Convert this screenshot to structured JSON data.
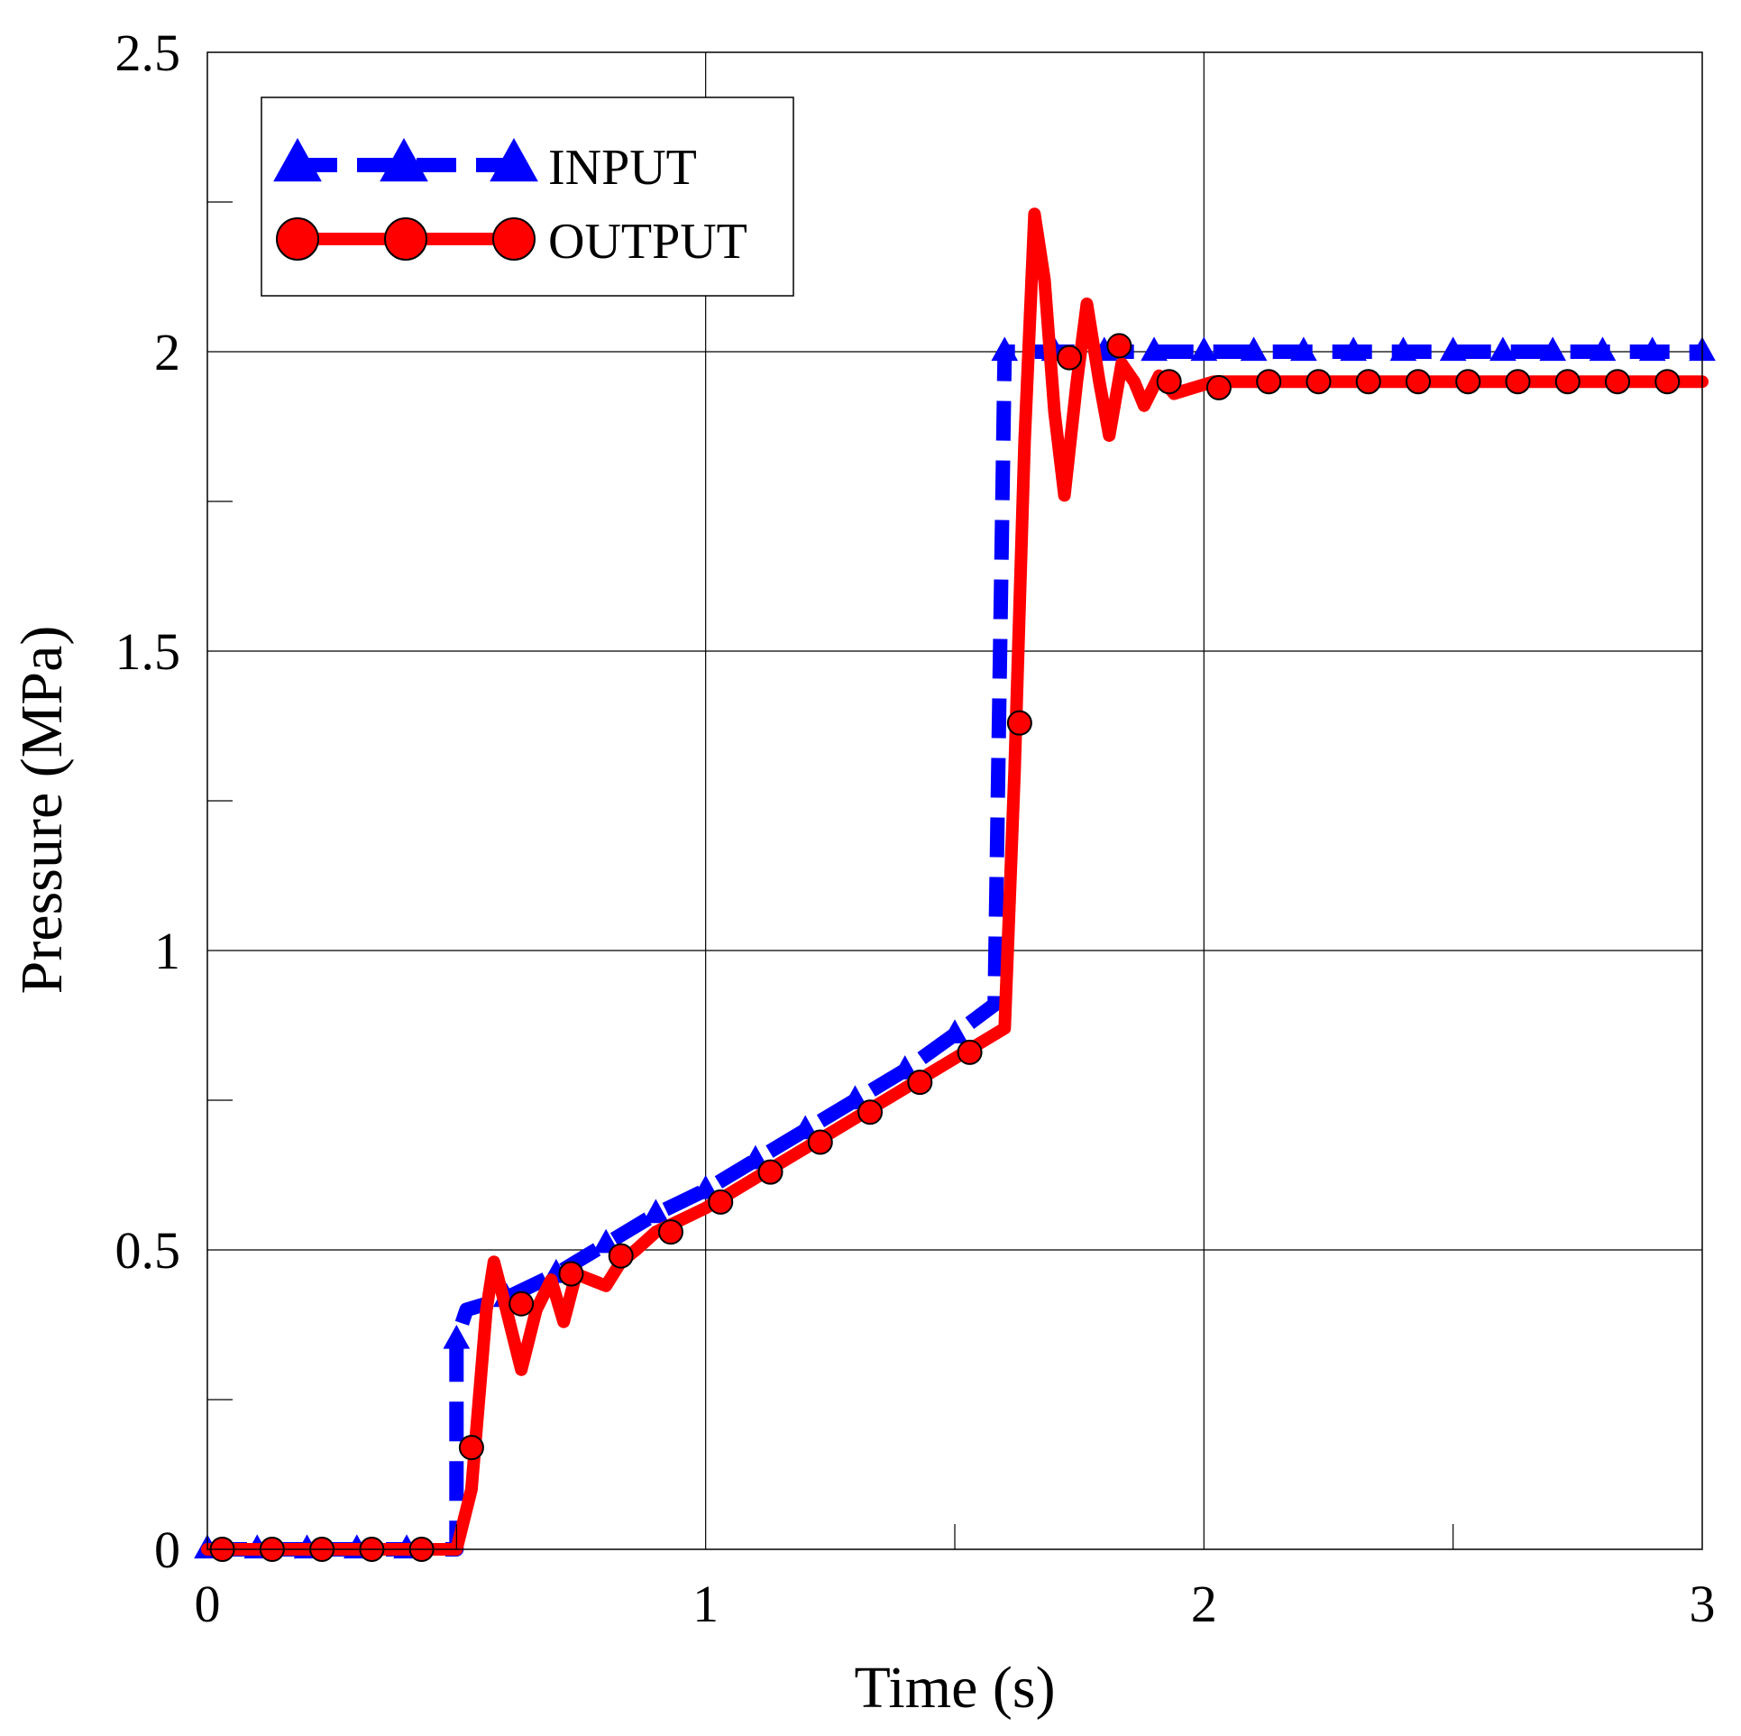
{
  "chart_data": {
    "type": "line",
    "title": "",
    "xlabel": "Time (s)",
    "ylabel": "Pressure (MPa)",
    "xlim": [
      0,
      3
    ],
    "ylim": [
      0,
      2.5
    ],
    "xticks": [
      0,
      1,
      2,
      3
    ],
    "xtick_labels": [
      "0",
      "1",
      "2",
      "3"
    ],
    "yticks": [
      0,
      0.5,
      1,
      1.5,
      2,
      2.5
    ],
    "ytick_labels": [
      "0",
      "0.5",
      "1",
      "1.5",
      "2",
      "2.5"
    ],
    "x_minor_ticks": [
      0.5,
      1.5,
      2.5
    ],
    "y_minor_ticks": [
      0.25,
      0.75,
      1.25,
      1.75,
      2.25
    ],
    "grid": true,
    "legend_position": "top-left",
    "series": [
      {
        "name": "INPUT",
        "color": "#0000ff",
        "line_style": "dashed",
        "marker": "triangle",
        "line": [
          [
            0,
            0
          ],
          [
            0.5,
            0
          ],
          [
            0.5,
            0.35
          ],
          [
            0.52,
            0.4
          ],
          [
            0.6,
            0.42
          ],
          [
            0.7,
            0.46
          ],
          [
            0.8,
            0.51
          ],
          [
            0.9,
            0.56
          ],
          [
            1.0,
            0.6
          ],
          [
            1.1,
            0.65
          ],
          [
            1.2,
            0.7
          ],
          [
            1.3,
            0.75
          ],
          [
            1.4,
            0.8
          ],
          [
            1.5,
            0.86
          ],
          [
            1.58,
            0.91
          ],
          [
            1.6,
            2.0
          ],
          [
            3.0,
            2.0
          ]
        ],
        "markers": [
          [
            0.0,
            0
          ],
          [
            0.1,
            0
          ],
          [
            0.2,
            0
          ],
          [
            0.3,
            0
          ],
          [
            0.4,
            0
          ],
          [
            0.5,
            0.35
          ],
          [
            0.6,
            0.42
          ],
          [
            0.7,
            0.46
          ],
          [
            0.8,
            0.51
          ],
          [
            0.9,
            0.56
          ],
          [
            1.0,
            0.6
          ],
          [
            1.1,
            0.65
          ],
          [
            1.2,
            0.7
          ],
          [
            1.3,
            0.75
          ],
          [
            1.4,
            0.8
          ],
          [
            1.5,
            0.86
          ],
          [
            1.6,
            2.0
          ],
          [
            1.7,
            2.0
          ],
          [
            1.8,
            2.0
          ],
          [
            1.9,
            2.0
          ],
          [
            2.0,
            2.0
          ],
          [
            2.1,
            2.0
          ],
          [
            2.2,
            2.0
          ],
          [
            2.3,
            2.0
          ],
          [
            2.4,
            2.0
          ],
          [
            2.5,
            2.0
          ],
          [
            2.6,
            2.0
          ],
          [
            2.7,
            2.0
          ],
          [
            2.8,
            2.0
          ],
          [
            2.9,
            2.0
          ],
          [
            3.0,
            2.0
          ]
        ]
      },
      {
        "name": "OUTPUT",
        "color": "#ff0000",
        "line_style": "solid",
        "marker": "circle",
        "line": [
          [
            0,
            0
          ],
          [
            0.5,
            0
          ],
          [
            0.53,
            0.1
          ],
          [
            0.56,
            0.4
          ],
          [
            0.575,
            0.48
          ],
          [
            0.6,
            0.4
          ],
          [
            0.63,
            0.3
          ],
          [
            0.66,
            0.4
          ],
          [
            0.69,
            0.45
          ],
          [
            0.715,
            0.38
          ],
          [
            0.74,
            0.46
          ],
          [
            0.77,
            0.45
          ],
          [
            0.8,
            0.44
          ],
          [
            0.83,
            0.48
          ],
          [
            0.86,
            0.5
          ],
          [
            0.9,
            0.53
          ],
          [
            1.0,
            0.57
          ],
          [
            1.1,
            0.62
          ],
          [
            1.2,
            0.67
          ],
          [
            1.3,
            0.72
          ],
          [
            1.4,
            0.77
          ],
          [
            1.5,
            0.82
          ],
          [
            1.6,
            0.87
          ],
          [
            1.62,
            1.3
          ],
          [
            1.64,
            1.85
          ],
          [
            1.66,
            2.23
          ],
          [
            1.68,
            2.12
          ],
          [
            1.7,
            1.9
          ],
          [
            1.72,
            1.76
          ],
          [
            1.745,
            1.95
          ],
          [
            1.765,
            2.08
          ],
          [
            1.79,
            1.95
          ],
          [
            1.81,
            1.86
          ],
          [
            1.835,
            1.98
          ],
          [
            1.86,
            1.95
          ],
          [
            1.88,
            1.91
          ],
          [
            1.91,
            1.96
          ],
          [
            1.94,
            1.93
          ],
          [
            1.98,
            1.94
          ],
          [
            2.02,
            1.95
          ],
          [
            2.1,
            1.95
          ],
          [
            3.0,
            1.95
          ]
        ],
        "markers": [
          [
            0.03,
            0
          ],
          [
            0.13,
            0
          ],
          [
            0.23,
            0
          ],
          [
            0.33,
            0
          ],
          [
            0.43,
            0
          ],
          [
            0.53,
            0.17
          ],
          [
            0.63,
            0.41
          ],
          [
            0.73,
            0.46
          ],
          [
            0.83,
            0.49
          ],
          [
            0.93,
            0.53
          ],
          [
            1.03,
            0.58
          ],
          [
            1.13,
            0.63
          ],
          [
            1.23,
            0.68
          ],
          [
            1.33,
            0.73
          ],
          [
            1.43,
            0.78
          ],
          [
            1.53,
            0.83
          ],
          [
            1.63,
            1.38
          ],
          [
            1.73,
            1.99
          ],
          [
            1.83,
            2.01
          ],
          [
            1.93,
            1.95
          ],
          [
            2.03,
            1.94
          ],
          [
            2.13,
            1.95
          ],
          [
            2.23,
            1.95
          ],
          [
            2.33,
            1.95
          ],
          [
            2.43,
            1.95
          ],
          [
            2.53,
            1.95
          ],
          [
            2.63,
            1.95
          ],
          [
            2.73,
            1.95
          ],
          [
            2.83,
            1.95
          ],
          [
            2.93,
            1.95
          ]
        ]
      }
    ]
  }
}
